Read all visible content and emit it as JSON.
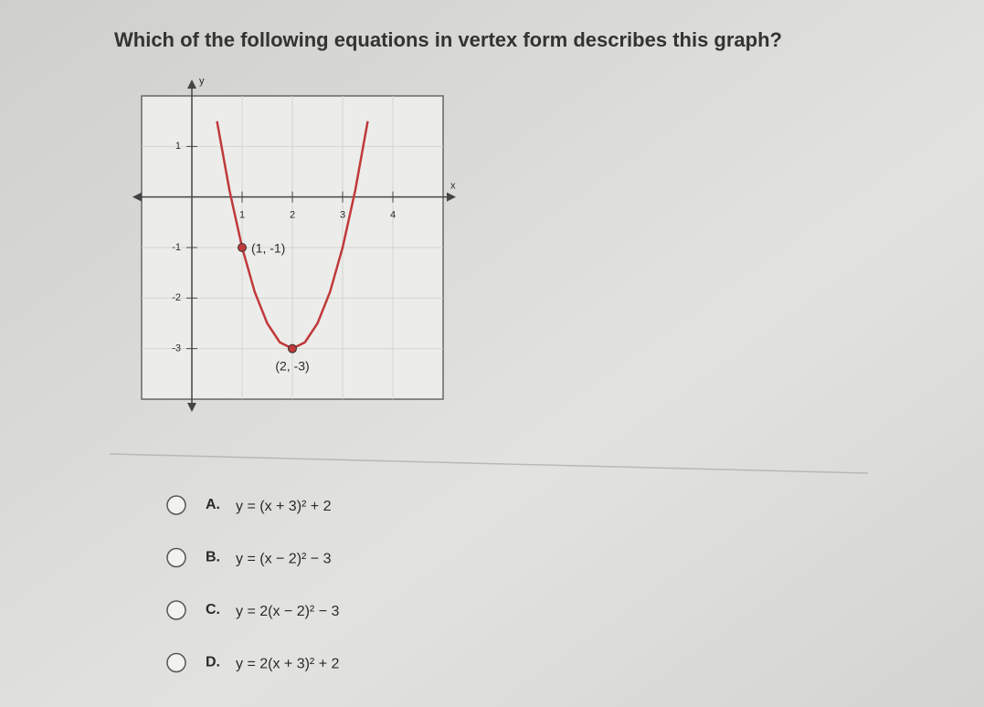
{
  "question": "Which of the following equations in vertex form describes this graph?",
  "chart_data": {
    "type": "line",
    "x_label": "x",
    "y_label": "y",
    "xlim": [
      -1,
      5
    ],
    "ylim": [
      -4,
      2
    ],
    "xticks": [
      1,
      2,
      3,
      4
    ],
    "yticks": [
      -3,
      -2,
      -1,
      1
    ],
    "grid": true,
    "series": [
      {
        "color": "#c0393b",
        "x": [
          0.5,
          0.75,
          1,
          1.25,
          1.5,
          1.75,
          2,
          2.25,
          2.5,
          2.75,
          3,
          3.25,
          3.5
        ],
        "values": [
          1.5,
          0.125,
          -1,
          -1.875,
          -2.5,
          -2.875,
          -3,
          -2.875,
          -2.5,
          -1.875,
          -1,
          0.125,
          1.5
        ]
      }
    ],
    "points": [
      {
        "x": 1,
        "y": -1,
        "label": "(1, -1)"
      },
      {
        "x": 2,
        "y": -3,
        "label": "(2, -3)"
      }
    ]
  },
  "options": [
    {
      "letter": "A.",
      "text": "y = (x + 3)² + 2"
    },
    {
      "letter": "B.",
      "text": "y = (x − 2)² − 3"
    },
    {
      "letter": "C.",
      "text": "y = 2(x − 2)² − 3"
    },
    {
      "letter": "D.",
      "text": "y = 2(x + 3)² + 2"
    }
  ]
}
